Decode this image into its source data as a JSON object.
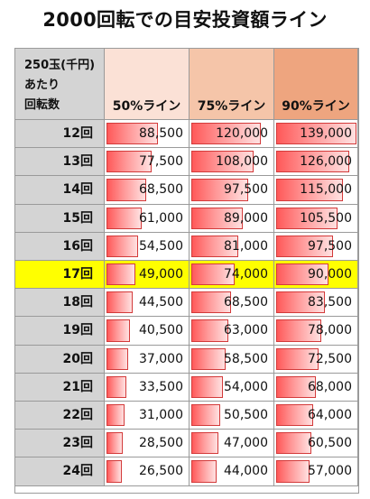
{
  "title": "2000回転での目安投資額ライン",
  "corner_lines": [
    "250玉(千円)",
    "あたり",
    "回転数"
  ],
  "columns": [
    {
      "label": "50%ライン",
      "header_color": "#fbe1d6"
    },
    {
      "label": "75%ライン",
      "header_color": "#f5c5a9"
    },
    {
      "label": "90%ライン",
      "header_color": "#eea57f"
    }
  ],
  "colors": {
    "label_bg": "#d4d4d4",
    "highlight": "#ffff00",
    "bar_dark": "#ff5959",
    "bar_light": "#ffe1e1",
    "grid_line": "#9a9a9a"
  },
  "highlight_row": "17回",
  "chart_data": {
    "type": "table",
    "title": "2000回転での目安投資額ライン",
    "row_header": "250玉(千円)あたり回転数",
    "bar_max": 140000,
    "categories": [
      "12回",
      "13回",
      "14回",
      "15回",
      "16回",
      "17回",
      "18回",
      "19回",
      "20回",
      "21回",
      "22回",
      "23回",
      "24回"
    ],
    "series": [
      {
        "name": "50%ライン",
        "values": [
          88500,
          77500,
          68500,
          61000,
          54500,
          49000,
          44500,
          40500,
          37000,
          33500,
          31000,
          28500,
          26500
        ],
        "labels": [
          "88,500",
          "77,500",
          "68,500",
          "61,000",
          "54,500",
          "49,000",
          "44,500",
          "40,500",
          "37,000",
          "33,500",
          "31,000",
          "28,500",
          "26,500"
        ]
      },
      {
        "name": "75%ライン",
        "values": [
          120000,
          108000,
          97500,
          89000,
          81000,
          74000,
          68500,
          63000,
          58500,
          54000,
          50500,
          47000,
          44000
        ],
        "labels": [
          "120,000",
          "108,000",
          "97,500",
          "89,000",
          "81,000",
          "74,000",
          "68,500",
          "63,000",
          "58,500",
          "54,000",
          "50,500",
          "47,000",
          "44,000"
        ]
      },
      {
        "name": "90%ライン",
        "values": [
          139000,
          126000,
          115000,
          105500,
          97500,
          90000,
          83500,
          78000,
          72500,
          68000,
          64000,
          60500,
          57000
        ],
        "labels": [
          "139,000",
          "126,000",
          "115,000",
          "105,500",
          "97,500",
          "90,000",
          "83,500",
          "78,000",
          "72,500",
          "68,000",
          "64,000",
          "60,500",
          "57,000"
        ]
      }
    ]
  }
}
